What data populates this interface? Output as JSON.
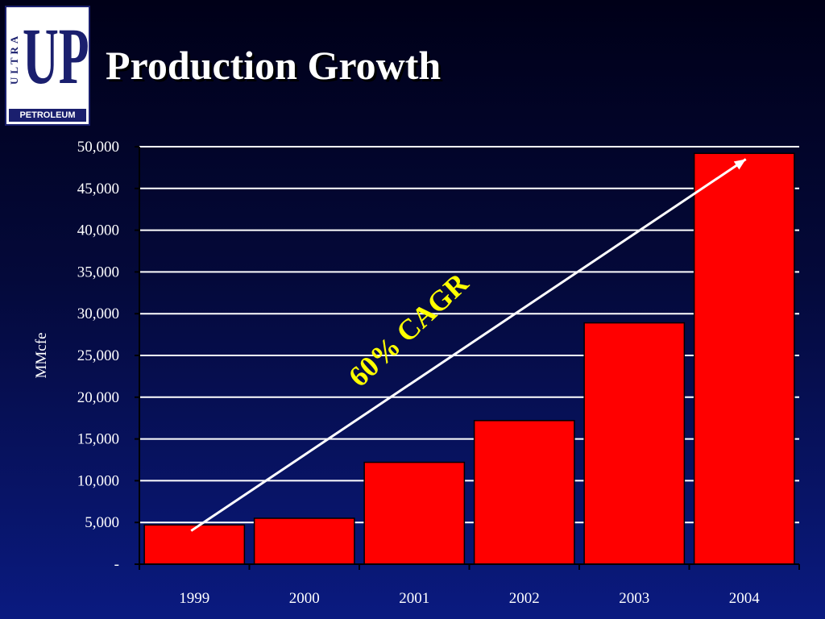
{
  "logo": {
    "side_text": "ULTRA",
    "main_text": "UP",
    "bottom_text": "PETROLEUM"
  },
  "title": "Production Growth",
  "colors": {
    "bar": "#ff0000",
    "grid": "#ffffff",
    "annotation": "#ffff00",
    "logo": "#1a1f6e"
  },
  "chart_data": {
    "type": "bar",
    "categories": [
      "1999",
      "2000",
      "2001",
      "2002",
      "2003",
      "2004"
    ],
    "values": [
      4700,
      5500,
      12200,
      17200,
      28900,
      49200
    ],
    "ylabel": "MMcfe",
    "ylim": [
      0,
      50000
    ],
    "yticks": [
      0,
      5000,
      10000,
      15000,
      20000,
      25000,
      30000,
      35000,
      40000,
      45000,
      50000
    ],
    "ytick_labels": [
      "-",
      "5,000",
      "10,000",
      "15,000",
      "20,000",
      "25,000",
      "30,000",
      "35,000",
      "40,000",
      "45,000",
      "50,000"
    ],
    "grid": true,
    "annotation": "60% CAGR",
    "trend_arrow": {
      "from_category": "1999",
      "from_value": 4000,
      "to_category": "2004",
      "to_value": 48500
    }
  }
}
